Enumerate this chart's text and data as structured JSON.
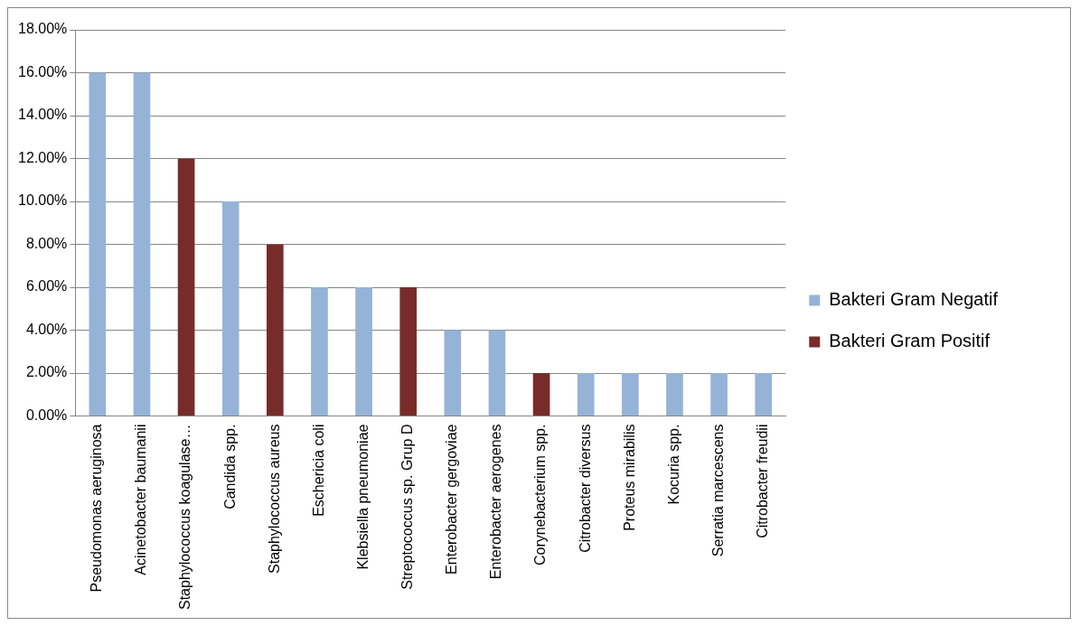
{
  "chart_data": {
    "type": "bar",
    "stacked": true,
    "categories": [
      "Pseudomonas aeruginosa",
      "Acinetobacter baumanii",
      "Staphylococcus koagulase…",
      "Candida spp.",
      "Staphylococcus aureus",
      "Eschericia coli",
      "Klebsiella pneumoniae",
      "Streptococcus sp. Grup D",
      "Enterobacter gergoviae",
      "Enterobacter aerogenes",
      "Corynebacterium spp.",
      "Citrobacter diversus",
      "Proteus mirabilis",
      "Kocuria spp.",
      "Serratia marcescens",
      "Citrobacter freudii"
    ],
    "series": [
      {
        "name": "Bakteri Gram Negatif",
        "color": "#95b3d7",
        "values": [
          16,
          16,
          null,
          10,
          null,
          6,
          6,
          null,
          4,
          4,
          null,
          2,
          2,
          2,
          2,
          2
        ]
      },
      {
        "name": "Bakteri Gram Positif",
        "color": "#772c2a",
        "values": [
          null,
          null,
          12,
          null,
          8,
          null,
          null,
          6,
          null,
          null,
          2,
          null,
          null,
          null,
          null,
          null
        ]
      }
    ],
    "ylim": [
      0,
      18
    ],
    "yticks": [
      {
        "value": 0,
        "label": "0.00%"
      },
      {
        "value": 2,
        "label": "2.00%"
      },
      {
        "value": 4,
        "label": "4.00%"
      },
      {
        "value": 6,
        "label": "6.00%"
      },
      {
        "value": 8,
        "label": "8.00%"
      },
      {
        "value": 10,
        "label": "10.00%"
      },
      {
        "value": 12,
        "label": "12.00%"
      },
      {
        "value": 14,
        "label": "14.00%"
      },
      {
        "value": 16,
        "label": "16.00%"
      },
      {
        "value": 18,
        "label": "18.00%"
      }
    ],
    "grid": "y",
    "legend": "right"
  }
}
